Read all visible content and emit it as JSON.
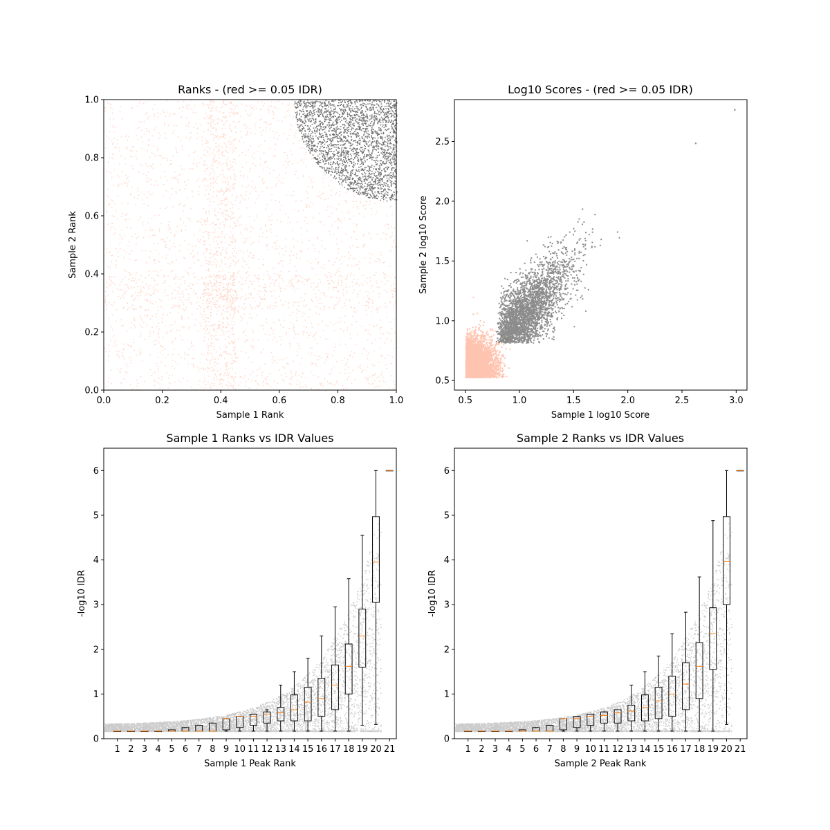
{
  "colors": {
    "below_threshold": "#ff9470",
    "above_threshold": "#000000",
    "median": "#ff7f0e"
  },
  "chart_data": [
    {
      "type": "scatter",
      "title": "Ranks - (red >= 0.05 IDR)",
      "xlabel": "Sample 1 Rank",
      "ylabel": "Sample 2 Rank",
      "xlim": [
        0,
        1
      ],
      "ylim": [
        0,
        1
      ],
      "xticks": [
        "0.0",
        "0.2",
        "0.4",
        "0.6",
        "0.8",
        "1.0"
      ],
      "yticks": [
        "0.0",
        "0.2",
        "0.4",
        "0.6",
        "0.8",
        "1.0"
      ],
      "grid": false,
      "series": [
        {
          "color": "#ff9470",
          "region": "rank points with IDR >= 0.05, filling the square outside the top-right arc"
        },
        {
          "color": "#000000",
          "region": "rank points with IDR < 0.05, top-right corner beyond the arc centred at (1,1) with radius ~0.35"
        }
      ]
    },
    {
      "type": "scatter",
      "title": "Log10 Scores - (red >= 0.05 IDR)",
      "xlabel": "Sample 1 log10 Score",
      "ylabel": "Sample 2 log10 Score",
      "xlim": [
        0.4,
        3.1
      ],
      "ylim": [
        0.42,
        2.85
      ],
      "xticks": [
        "0.5",
        "1.0",
        "1.5",
        "2.0",
        "2.5",
        "3.0"
      ],
      "yticks": [
        "0.5",
        "1.0",
        "1.5",
        "2.0",
        "2.5"
      ],
      "grid": false,
      "series": [
        {
          "color": "#ff9470",
          "region": "dense cloud x 0.5–0.95, y 0.53–1.3"
        },
        {
          "color": "#000000",
          "region": "diagonal cloud x 0.75–2.3, y 0.82–2.25"
        }
      ],
      "outliers": [
        {
          "x": 2.62,
          "y": 2.49
        },
        {
          "x": 2.98,
          "y": 2.77
        }
      ]
    },
    {
      "type": "box",
      "title": "Sample 1 Ranks vs IDR Values",
      "xlabel": "Sample 1 Peak Rank",
      "ylabel": "-log10 IDR",
      "ylim": [
        0,
        6.5
      ],
      "xticks": [
        "1",
        "2",
        "3",
        "4",
        "5",
        "6",
        "7",
        "8",
        "9",
        "10",
        "11",
        "12",
        "13",
        "14",
        "15",
        "16",
        "17",
        "18",
        "19",
        "20",
        "21"
      ],
      "yticks": [
        "0",
        "1",
        "2",
        "3",
        "4",
        "5",
        "6"
      ],
      "grid": false,
      "boxes": [
        {
          "q1": 0.17,
          "median": 0.17,
          "q3": 0.17,
          "whislo": 0.17,
          "whishi": 0.17
        },
        {
          "q1": 0.17,
          "median": 0.17,
          "q3": 0.17,
          "whislo": 0.17,
          "whishi": 0.17
        },
        {
          "q1": 0.17,
          "median": 0.17,
          "q3": 0.17,
          "whislo": 0.17,
          "whishi": 0.17
        },
        {
          "q1": 0.17,
          "median": 0.17,
          "q3": 0.17,
          "whislo": 0.17,
          "whishi": 0.17
        },
        {
          "q1": 0.17,
          "median": 0.17,
          "q3": 0.2,
          "whislo": 0.17,
          "whishi": 0.2
        },
        {
          "q1": 0.17,
          "median": 0.17,
          "q3": 0.25,
          "whislo": 0.17,
          "whishi": 0.25
        },
        {
          "q1": 0.17,
          "median": 0.17,
          "q3": 0.3,
          "whislo": 0.17,
          "whishi": 0.3
        },
        {
          "q1": 0.17,
          "median": 0.17,
          "q3": 0.35,
          "whislo": 0.17,
          "whishi": 0.35
        },
        {
          "q1": 0.2,
          "median": 0.45,
          "q3": 0.45,
          "whislo": 0.17,
          "whishi": 0.45
        },
        {
          "q1": 0.25,
          "median": 0.5,
          "q3": 0.5,
          "whislo": 0.17,
          "whishi": 0.5
        },
        {
          "q1": 0.3,
          "median": 0.5,
          "q3": 0.55,
          "whislo": 0.17,
          "whishi": 0.55
        },
        {
          "q1": 0.35,
          "median": 0.55,
          "q3": 0.6,
          "whislo": 0.17,
          "whishi": 0.65
        },
        {
          "q1": 0.4,
          "median": 0.58,
          "q3": 0.7,
          "whislo": 0.17,
          "whishi": 1.2
        },
        {
          "q1": 0.4,
          "median": 0.65,
          "q3": 0.98,
          "whislo": 0.17,
          "whishi": 1.5
        },
        {
          "q1": 0.4,
          "median": 0.82,
          "q3": 1.15,
          "whislo": 0.17,
          "whishi": 1.8
        },
        {
          "q1": 0.5,
          "median": 0.9,
          "q3": 1.35,
          "whislo": 0.17,
          "whishi": 2.3
        },
        {
          "q1": 0.65,
          "median": 1.2,
          "q3": 1.65,
          "whislo": 0.17,
          "whishi": 2.95
        },
        {
          "q1": 1.0,
          "median": 1.62,
          "q3": 2.12,
          "whislo": 0.17,
          "whishi": 3.58
        },
        {
          "q1": 1.6,
          "median": 2.3,
          "q3": 2.9,
          "whislo": 0.3,
          "whishi": 4.55
        },
        {
          "q1": 3.05,
          "median": 3.95,
          "q3": 4.97,
          "whislo": 0.32,
          "whishi": 6.0
        },
        {
          "q1": 6.0,
          "median": 6.0,
          "q3": 6.0,
          "whislo": 6.0,
          "whishi": 6.0
        }
      ]
    },
    {
      "type": "box",
      "title": "Sample 2 Ranks vs IDR Values",
      "xlabel": "Sample 2 Peak Rank",
      "ylabel": "-log10 IDR",
      "ylim": [
        0,
        6.5
      ],
      "xticks": [
        "1",
        "2",
        "3",
        "4",
        "5",
        "6",
        "7",
        "8",
        "9",
        "10",
        "11",
        "12",
        "13",
        "14",
        "15",
        "16",
        "17",
        "18",
        "19",
        "20",
        "21"
      ],
      "yticks": [
        "0",
        "1",
        "2",
        "3",
        "4",
        "5",
        "6"
      ],
      "grid": false,
      "boxes": [
        {
          "q1": 0.17,
          "median": 0.17,
          "q3": 0.17,
          "whislo": 0.17,
          "whishi": 0.17
        },
        {
          "q1": 0.17,
          "median": 0.17,
          "q3": 0.17,
          "whislo": 0.17,
          "whishi": 0.17
        },
        {
          "q1": 0.17,
          "median": 0.17,
          "q3": 0.17,
          "whislo": 0.17,
          "whishi": 0.17
        },
        {
          "q1": 0.17,
          "median": 0.17,
          "q3": 0.17,
          "whislo": 0.17,
          "whishi": 0.17
        },
        {
          "q1": 0.17,
          "median": 0.17,
          "q3": 0.2,
          "whislo": 0.17,
          "whishi": 0.2
        },
        {
          "q1": 0.17,
          "median": 0.17,
          "q3": 0.25,
          "whislo": 0.17,
          "whishi": 0.25
        },
        {
          "q1": 0.17,
          "median": 0.17,
          "q3": 0.3,
          "whislo": 0.17,
          "whishi": 0.3
        },
        {
          "q1": 0.2,
          "median": 0.45,
          "q3": 0.45,
          "whislo": 0.17,
          "whishi": 0.45
        },
        {
          "q1": 0.25,
          "median": 0.45,
          "q3": 0.5,
          "whislo": 0.17,
          "whishi": 0.5
        },
        {
          "q1": 0.3,
          "median": 0.5,
          "q3": 0.55,
          "whislo": 0.17,
          "whishi": 0.55
        },
        {
          "q1": 0.35,
          "median": 0.52,
          "q3": 0.6,
          "whislo": 0.17,
          "whishi": 0.6
        },
        {
          "q1": 0.35,
          "median": 0.58,
          "q3": 0.65,
          "whislo": 0.17,
          "whishi": 0.65
        },
        {
          "q1": 0.4,
          "median": 0.62,
          "q3": 0.75,
          "whislo": 0.17,
          "whishi": 1.2
        },
        {
          "q1": 0.4,
          "median": 0.7,
          "q3": 0.98,
          "whislo": 0.17,
          "whishi": 1.5
        },
        {
          "q1": 0.45,
          "median": 0.85,
          "q3": 1.15,
          "whislo": 0.17,
          "whishi": 1.85
        },
        {
          "q1": 0.5,
          "median": 1.0,
          "q3": 1.4,
          "whislo": 0.17,
          "whishi": 2.35
        },
        {
          "q1": 0.65,
          "median": 1.22,
          "q3": 1.7,
          "whislo": 0.17,
          "whishi": 2.83
        },
        {
          "q1": 0.9,
          "median": 1.62,
          "q3": 2.15,
          "whislo": 0.17,
          "whishi": 3.62
        },
        {
          "q1": 1.55,
          "median": 2.35,
          "q3": 2.93,
          "whislo": 0.17,
          "whishi": 4.88
        },
        {
          "q1": 3.0,
          "median": 3.97,
          "q3": 4.97,
          "whislo": 0.32,
          "whishi": 6.0
        },
        {
          "q1": 6.0,
          "median": 6.0,
          "q3": 6.0,
          "whislo": 6.0,
          "whishi": 6.0
        }
      ]
    }
  ]
}
